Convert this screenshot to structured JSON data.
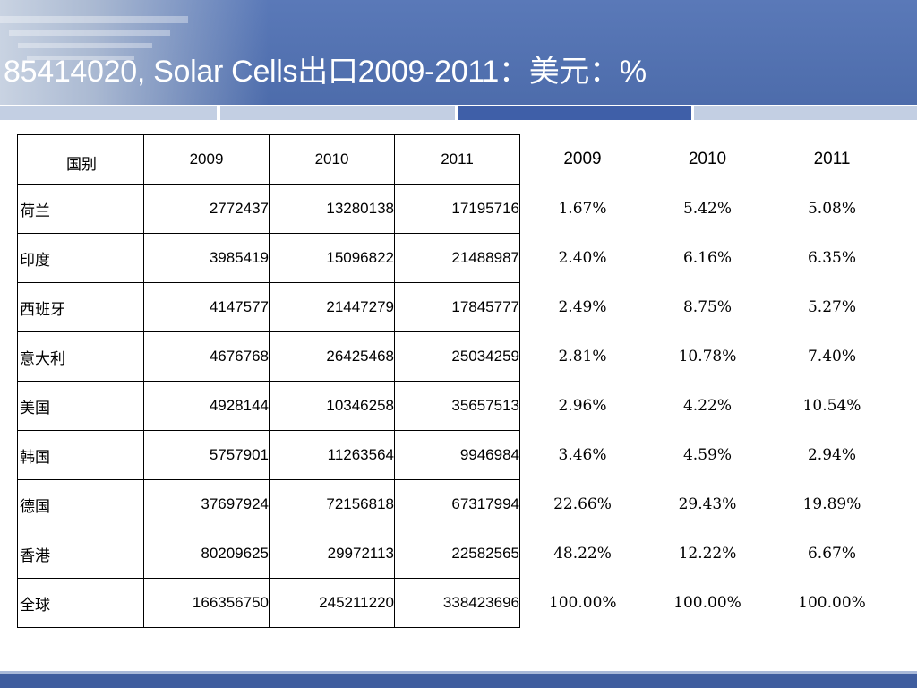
{
  "slide": {
    "title": "85414020, Solar Cells出口2009-2011：美元：%"
  },
  "table": {
    "headers": [
      "国别",
      "2009",
      "2010",
      "2011",
      "2009",
      "2010",
      "2011"
    ],
    "rows": [
      [
        "荷兰",
        "2772437",
        "13280138",
        "17195716",
        "1.67%",
        "5.42%",
        "5.08%"
      ],
      [
        "印度",
        "3985419",
        "15096822",
        "21488987",
        "2.40%",
        "6.16%",
        "6.35%"
      ],
      [
        "西班牙",
        "4147577",
        "21447279",
        "17845777",
        "2.49%",
        "8.75%",
        "5.27%"
      ],
      [
        "意大利",
        "4676768",
        "26425468",
        "25034259",
        "2.81%",
        "10.78%",
        "7.40%"
      ],
      [
        "美国",
        "4928144",
        "10346258",
        "35657513",
        "2.96%",
        "4.22%",
        "10.54%"
      ],
      [
        "韩国",
        "5757901",
        "11263564",
        "9946984",
        "3.46%",
        "4.59%",
        "2.94%"
      ],
      [
        "德国",
        "37697924",
        "72156818",
        "67317994",
        "22.66%",
        "29.43%",
        "19.89%"
      ],
      [
        "香港",
        "80209625",
        "29972113",
        "22582565",
        "48.22%",
        "12.22%",
        "6.67%"
      ],
      [
        "全球",
        "166356750",
        "245211220",
        "338423696",
        "100.00%",
        "100.00%",
        "100.00%"
      ]
    ]
  },
  "colors": {
    "header_bg": "#4d6cab",
    "stripe_gray": "#c3cfe3",
    "stripe_blue": "#3f5fa8",
    "footer": "#3f5d9e"
  }
}
